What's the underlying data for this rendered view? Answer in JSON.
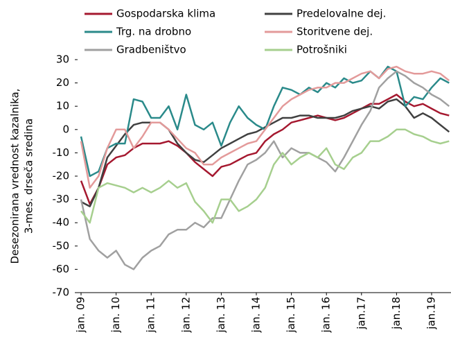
{
  "chart_data": {
    "type": "line",
    "ylabel": [
      "Desezonirana vrednost kazalnika,",
      "3-mes. drseča sredina"
    ],
    "categories": [
      "jan. 09",
      null,
      null,
      null,
      "jan. 10",
      null,
      null,
      null,
      "jan. 11",
      null,
      null,
      null,
      "jan. 12",
      null,
      null,
      null,
      "jan. 13",
      null,
      null,
      null,
      "jan. 14",
      null,
      null,
      null,
      "jan. 15",
      null,
      null,
      null,
      "jan. 16",
      null,
      null,
      null,
      "jan.17",
      null,
      null,
      null,
      "jan.18",
      null,
      null,
      null,
      "jan.19",
      null,
      null
    ],
    "ylim": [
      -70,
      30
    ],
    "yticks": [
      -70,
      -60,
      -50,
      -40,
      -30,
      -20,
      -10,
      0,
      10,
      20,
      30
    ],
    "series": [
      {
        "name": "Gospodarska klima",
        "color": "#a5182f",
        "values": [
          -22,
          -32,
          -25,
          -15,
          -12,
          -11,
          -8,
          -6,
          -6,
          -6,
          -5,
          -7,
          -10,
          -14,
          -17,
          -20,
          -16,
          -15,
          -13,
          -11,
          -10,
          -5,
          -2,
          0,
          3,
          4,
          5,
          6,
          5,
          4,
          5,
          7,
          9,
          11,
          11,
          13,
          15,
          12,
          10,
          11,
          9,
          7,
          6
        ]
      },
      {
        "name": "Predelovalne dej.",
        "color": "#404040",
        "values": [
          -31,
          -33,
          -25,
          -12,
          -7,
          -2,
          2,
          3,
          3,
          3,
          0,
          -6,
          -10,
          -13,
          -14,
          -11,
          -8,
          -6,
          -4,
          -2,
          -1,
          1,
          3,
          5,
          5,
          6,
          6,
          5,
          5,
          5,
          6,
          8,
          9,
          10,
          9,
          12,
          13,
          10,
          5,
          7,
          5,
          2,
          -1
        ]
      },
      {
        "name": "Trg. na drobno",
        "color": "#2a8a8a",
        "values": [
          -3,
          -20,
          -18,
          -8,
          -6,
          -6,
          13,
          12,
          5,
          5,
          10,
          0,
          15,
          2,
          0,
          3,
          -7,
          3,
          10,
          5,
          2,
          0,
          10,
          18,
          17,
          15,
          18,
          16,
          20,
          18,
          22,
          20,
          21,
          25,
          22,
          27,
          25,
          10,
          14,
          13,
          18,
          22,
          20
        ]
      },
      {
        "name": "Storitvene dej.",
        "color": "#e39a9a",
        "values": [
          -5,
          -25,
          -20,
          -8,
          0,
          0,
          -8,
          -3,
          3,
          3,
          0,
          -4,
          -8,
          -10,
          -15,
          -15,
          -12,
          -10,
          -8,
          -6,
          -5,
          0,
          5,
          10,
          13,
          15,
          17,
          18,
          18,
          20,
          20,
          22,
          24,
          25,
          22,
          26,
          27,
          25,
          24,
          24,
          25,
          24,
          21
        ]
      },
      {
        "name": "Gradbeništvo",
        "color": "#a0a0a0",
        "values": [
          -30,
          -47,
          -52,
          -55,
          -52,
          -58,
          -60,
          -55,
          -52,
          -50,
          -45,
          -43,
          -43,
          -40,
          -42,
          -38,
          -38,
          -30,
          -22,
          -15,
          -13,
          -10,
          -5,
          -12,
          -8,
          -10,
          -10,
          -12,
          -14,
          -18,
          -12,
          -5,
          2,
          8,
          18,
          22,
          25,
          23,
          20,
          18,
          15,
          13,
          10
        ]
      },
      {
        "name": "Potrošniki",
        "color": "#a6cf8e",
        "values": [
          -35,
          -40,
          -25,
          -23,
          -24,
          -25,
          -27,
          -25,
          -27,
          -25,
          -22,
          -25,
          -23,
          -31,
          -35,
          -40,
          -30,
          -30,
          -35,
          -33,
          -30,
          -25,
          -15,
          -10,
          -15,
          -12,
          -10,
          -12,
          -8,
          -15,
          -17,
          -12,
          -10,
          -5,
          -5,
          -3,
          0,
          0,
          -2,
          -3,
          -5,
          -6,
          -5
        ]
      }
    ]
  }
}
